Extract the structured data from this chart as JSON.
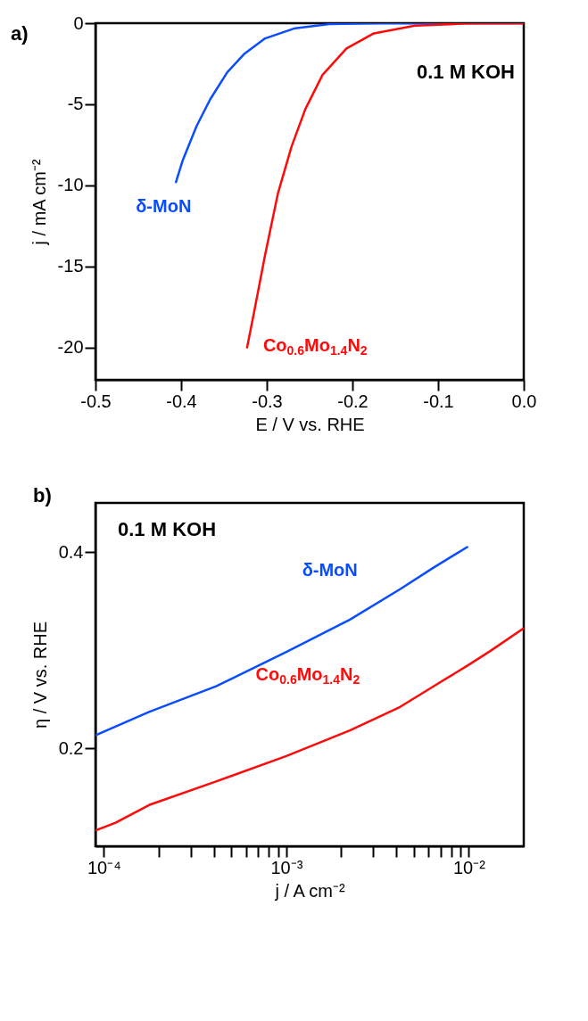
{
  "chart_data": [
    {
      "type": "line",
      "xlabel": "E / V vs. RHE",
      "ylabel": "j / mA cm⁻²",
      "legend": false,
      "grid": false,
      "marker": "none",
      "line_style": "solid",
      "annotations": [
        "a)",
        "0.1 M KOH"
      ],
      "xlim": [
        -0.5,
        0.0
      ],
      "xticks": [
        -0.5,
        -0.4,
        -0.3,
        -0.2,
        -0.1,
        {
          "value": 0.0,
          "label": "0.0"
        }
      ],
      "ylim": [
        -22,
        0
      ],
      "yticks": [
        -20,
        -15,
        -10,
        -5,
        0
      ],
      "series": [
        {
          "name": "δ-MoN",
          "color": "#0a4dff",
          "x": [
            -0.406,
            -0.398,
            -0.382,
            -0.366,
            -0.346,
            -0.326,
            -0.302,
            -0.267,
            -0.227,
            -0.167,
            0.0
          ],
          "values": [
            -9.8,
            -8.44,
            -6.35,
            -4.69,
            -3.02,
            -1.88,
            -0.94,
            -0.31,
            -0.06,
            0,
            0
          ]
        },
        {
          "name": "Co$_{0.6}$Mo$_{1.4}$N$_{2}$",
          "color": "#ff0a0a",
          "x": [
            -0.323,
            -0.314,
            -0.302,
            -0.287,
            -0.271,
            -0.255,
            -0.235,
            -0.207,
            -0.175,
            -0.127,
            -0.067,
            0.0
          ],
          "values": [
            -20,
            -17.6,
            -14.3,
            -10.5,
            -7.6,
            -5.3,
            -3.2,
            -1.56,
            -0.63,
            -0.15,
            -0.02,
            0
          ]
        }
      ]
    },
    {
      "type": "line",
      "xlabel": "j / A cm⁻²",
      "ylabel": "η / V vs. RHE",
      "legend": false,
      "grid": false,
      "marker": "none",
      "line_style": "solid",
      "log": "x",
      "annotations": [
        "b)",
        "0.1 M KOH"
      ],
      "xlim": [
        9e-05,
        0.02
      ],
      "xticks": [
        {
          "value": 0.0001,
          "label": "10⁻⁴"
        },
        {
          "value": 0.0002,
          "label": null
        },
        {
          "value": 0.0003,
          "label": null
        },
        {
          "value": 0.0004,
          "label": null
        },
        {
          "value": 0.0005,
          "label": null
        },
        {
          "value": 0.0006,
          "label": null
        },
        {
          "value": 0.0007,
          "label": null
        },
        {
          "value": 0.0008,
          "label": null
        },
        {
          "value": 0.0009,
          "label": null
        },
        {
          "value": 0.001,
          "label": "10⁻³"
        },
        {
          "value": 0.002,
          "label": null
        },
        {
          "value": 0.003,
          "label": null
        },
        {
          "value": 0.004,
          "label": null
        },
        {
          "value": 0.005,
          "label": null
        },
        {
          "value": 0.006,
          "label": null
        },
        {
          "value": 0.007,
          "label": null
        },
        {
          "value": 0.008,
          "label": null
        },
        {
          "value": 0.009,
          "label": null
        },
        {
          "value": 0.01,
          "label": "10⁻²"
        }
      ],
      "ylim": [
        0.1,
        0.45
      ],
      "yticks": [
        0.2,
        0.4
      ],
      "series": [
        {
          "name": "δ-MoN",
          "color": "#0a4dff",
          "x": [
            9e-05,
            0.000177,
            0.000412,
            0.001,
            0.00223,
            0.0042,
            0.0064,
            0.0098
          ],
          "values": [
            0.213,
            0.237,
            0.263,
            0.298,
            0.331,
            0.362,
            0.384,
            0.405
          ]
        },
        {
          "name": "Co$_{0.6}$Mo$_{1.4}$N$_{2}$",
          "color": "#ff0a0a",
          "x": [
            9e-05,
            0.000116,
            0.000177,
            0.000412,
            0.001,
            0.00223,
            0.0042,
            0.0064,
            0.0098,
            0.0131,
            0.0199
          ],
          "values": [
            0.116,
            0.124,
            0.142,
            0.166,
            0.192,
            0.218,
            0.242,
            0.263,
            0.284,
            0.299,
            0.322
          ]
        }
      ]
    }
  ]
}
